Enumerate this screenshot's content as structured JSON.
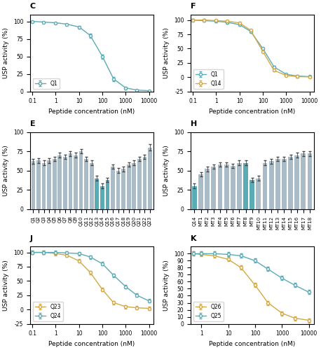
{
  "chart_data": [
    {
      "type": "line",
      "title": "C",
      "log": "x",
      "x": [
        0.1,
        0.3,
        1,
        3,
        10,
        30,
        100,
        300,
        1000,
        3000,
        10000
      ],
      "xlim": [
        0.08,
        15000
      ],
      "xticks": [
        0.1,
        1,
        10,
        100,
        1000,
        10000
      ],
      "ylim": [
        0,
        110
      ],
      "yticks": [
        0,
        25,
        50,
        75,
        100
      ],
      "xlabel": "Peptide concentration (nM)",
      "ylabel": "USP activity (%)",
      "legend": "lower left",
      "series": [
        {
          "name": "Q1",
          "color": "#5BABB5",
          "marker": "o",
          "values": [
            100,
            99,
            98,
            96,
            92,
            80,
            50,
            18,
            5,
            2,
            1
          ],
          "errors": [
            1,
            1,
            1,
            1,
            2,
            3,
            3,
            3,
            2,
            1,
            1
          ]
        }
      ]
    },
    {
      "type": "line",
      "title": "F",
      "log": "x",
      "x": [
        0.1,
        0.3,
        1,
        3,
        10,
        30,
        100,
        300,
        1000,
        3000,
        10000
      ],
      "xlim": [
        0.08,
        15000
      ],
      "xticks": [
        0.1,
        1,
        10,
        100,
        1000,
        10000
      ],
      "ylim": [
        -25,
        110
      ],
      "yticks": [
        -25,
        0,
        25,
        50,
        75,
        100
      ],
      "xlabel": "Peptide concentration (nM)",
      "ylabel": "USP activity (%)",
      "legend": "lower left",
      "series": [
        {
          "name": "Q1",
          "color": "#5BABB5",
          "marker": "o",
          "values": [
            100,
            99,
            98,
            96,
            92,
            80,
            50,
            18,
            5,
            2,
            1
          ],
          "errors": [
            2,
            2,
            2,
            2,
            2,
            2,
            2,
            2,
            2,
            2,
            2
          ]
        },
        {
          "name": "Q14",
          "color": "#D4A843",
          "marker": "o",
          "values": [
            100,
            100,
            99,
            98,
            95,
            82,
            45,
            12,
            3,
            1,
            0.5
          ],
          "errors": [
            2,
            2,
            2,
            2,
            2,
            2,
            2,
            2,
            2,
            2,
            2
          ]
        }
      ]
    },
    {
      "type": "bar",
      "title": "E",
      "categories": [
        "Q1",
        "Q2",
        "Q3",
        "Q4",
        "Q5",
        "Q6",
        "Q7",
        "Q8",
        "Q9",
        "Q10",
        "Q11",
        "Q12",
        "Q13",
        "Q14",
        "Q15",
        "Q16",
        "Q17",
        "Q18",
        "Q19",
        "Q20",
        "Q21",
        "Q22",
        "Q23"
      ],
      "values": [
        62,
        63,
        60,
        63,
        65,
        70,
        68,
        72,
        70,
        75,
        65,
        60,
        40,
        30,
        38,
        55,
        50,
        52,
        58,
        60,
        65,
        68,
        80
      ],
      "errors": [
        3,
        3,
        3,
        3,
        3,
        3,
        3,
        3,
        3,
        3,
        3,
        3,
        3,
        3,
        3,
        3,
        3,
        3,
        3,
        3,
        3,
        3,
        4
      ],
      "colors": [
        "#AABCC8",
        "#AABCC8",
        "#AABCC8",
        "#AABCC8",
        "#AABCC8",
        "#AABCC8",
        "#AABCC8",
        "#AABCC8",
        "#AABCC8",
        "#AABCC8",
        "#AABCC8",
        "#AABCC8",
        "#5BABB5",
        "#5BABB5",
        "#5BABB5",
        "#AABCC8",
        "#AABCC8",
        "#AABCC8",
        "#AABCC8",
        "#AABCC8",
        "#AABCC8",
        "#AABCC8",
        "#AABCC8"
      ],
      "ylabel": "USP activity (%)",
      "ylim": [
        0,
        100
      ],
      "yticks": [
        0,
        25,
        50,
        75,
        100
      ]
    },
    {
      "type": "bar",
      "title": "H",
      "categories": [
        "Q14",
        "MT1",
        "MT2",
        "MT3",
        "MT4",
        "MT5",
        "MT6",
        "MT7",
        "MT8",
        "MT9",
        "MT10",
        "MT11",
        "MT12",
        "MT13",
        "MT14",
        "MT15",
        "MT16",
        "MT17",
        "MT18"
      ],
      "values": [
        30,
        45,
        52,
        55,
        58,
        58,
        56,
        60,
        60,
        38,
        40,
        60,
        62,
        65,
        65,
        68,
        70,
        72,
        72
      ],
      "errors": [
        3,
        3,
        3,
        3,
        3,
        3,
        3,
        3,
        3,
        3,
        3,
        3,
        3,
        3,
        3,
        3,
        3,
        3,
        3
      ],
      "colors": [
        "#5BABB5",
        "#AABCC8",
        "#AABCC8",
        "#AABCC8",
        "#AABCC8",
        "#AABCC8",
        "#AABCC8",
        "#AABCC8",
        "#5BABB5",
        "#5BABB5",
        "#AABCC8",
        "#AABCC8",
        "#AABCC8",
        "#AABCC8",
        "#AABCC8",
        "#AABCC8",
        "#AABCC8",
        "#AABCC8",
        "#AABCC8"
      ],
      "ylabel": "USP activity (%)",
      "ylim": [
        0,
        100
      ],
      "yticks": [
        0,
        25,
        50,
        75,
        100
      ]
    },
    {
      "type": "line",
      "title": "J",
      "log": "x",
      "x": [
        0.1,
        0.3,
        1,
        3,
        10,
        30,
        100,
        300,
        1000,
        3000,
        10000
      ],
      "xlim": [
        0.08,
        15000
      ],
      "xticks": [
        0.1,
        1,
        10,
        100,
        1000,
        10000
      ],
      "ylim": [
        -25,
        110
      ],
      "yticks": [
        -25,
        0,
        25,
        50,
        75,
        100
      ],
      "xlabel": "Peptide concentration (nM)",
      "ylabel": "USP activity (%)",
      "legend": "lower left",
      "series": [
        {
          "name": "Q23",
          "color": "#D4A843",
          "marker": "o",
          "values": [
            100,
            100,
            98,
            95,
            85,
            65,
            35,
            12,
            5,
            3,
            2
          ],
          "errors": [
            3,
            3,
            3,
            3,
            3,
            3,
            3,
            3,
            3,
            3,
            3
          ]
        },
        {
          "name": "Q24",
          "color": "#5BABB5",
          "marker": "o",
          "values": [
            100,
            100,
            100,
            99,
            98,
            92,
            80,
            60,
            40,
            25,
            15
          ],
          "errors": [
            3,
            3,
            3,
            3,
            3,
            3,
            3,
            3,
            3,
            3,
            3
          ]
        }
      ]
    },
    {
      "type": "line",
      "title": "K",
      "log": "x",
      "x": [
        0.5,
        1,
        3,
        10,
        30,
        100,
        300,
        1000,
        3000,
        10000
      ],
      "xlim": [
        0.4,
        15000
      ],
      "xticks": [
        1,
        10,
        100,
        1000,
        10000
      ],
      "ylim": [
        0,
        110
      ],
      "yticks": [
        0,
        10,
        20,
        30,
        40,
        50,
        60,
        70,
        80,
        90,
        100
      ],
      "xlabel": "Peptide concentration (nM)",
      "ylabel": "USP activity (%)",
      "legend": "lower left",
      "series": [
        {
          "name": "Q26",
          "color": "#D4A843",
          "marker": "o",
          "values": [
            100,
            99,
            97,
            92,
            80,
            55,
            30,
            15,
            8,
            5
          ],
          "errors": [
            3,
            3,
            3,
            3,
            3,
            3,
            3,
            3,
            3,
            3
          ]
        },
        {
          "name": "Q25",
          "color": "#5BABB5",
          "marker": "o",
          "values": [
            100,
            100,
            100,
            99,
            97,
            90,
            78,
            65,
            55,
            45
          ],
          "errors": [
            3,
            3,
            3,
            3,
            3,
            3,
            3,
            3,
            3,
            3
          ]
        }
      ]
    }
  ]
}
